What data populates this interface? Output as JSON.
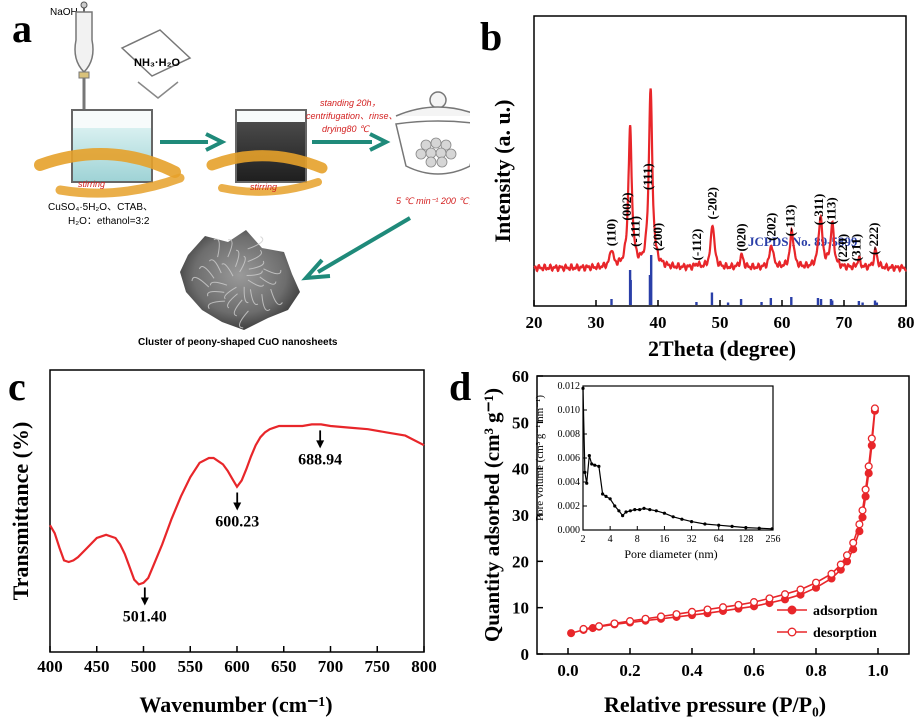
{
  "panels": {
    "a": {
      "letter": "a",
      "labels": {
        "naoh": "NaOH",
        "nh3": "NH₃·H₂O",
        "stirring1": "stirring",
        "reagents1": "CuSO₄·5H₂O、CTAB、",
        "reagents2": "H₂O：ethanol=3:2",
        "stirring2": "stirring",
        "step1": "standing 20h，",
        "step2": "centrifugation、rinse、",
        "step3": "drying80 ℃",
        "calc": "5 ℃ min⁻¹ 200 ℃，6h",
        "caption": "Cluster of peony-shaped CuO nanosheets"
      }
    },
    "b": {
      "letter": "b",
      "ref_label": "JCPDS No. 89-5899"
    },
    "c": {
      "letter": "c"
    },
    "d": {
      "letter": "d"
    }
  },
  "chart_data": [
    {
      "id": "xrd",
      "type": "line",
      "xlabel": "2Theta (degree)",
      "ylabel": "Intensity (a. u.)",
      "xlim": [
        20,
        80
      ],
      "xticks": [
        20,
        30,
        40,
        50,
        60,
        70,
        80
      ],
      "line_color": "#e8262a",
      "ref_color": "#2a3fa8",
      "peaks": [
        {
          "x": 32.5,
          "h": 0.1,
          "w": 0.45
        },
        {
          "x": 35.5,
          "h": 0.78,
          "w": 0.5
        },
        {
          "x": 38.8,
          "h": 1.0,
          "w": 0.5
        },
        {
          "x": 46.3,
          "h": 0.02,
          "w": 0.4
        },
        {
          "x": 48.8,
          "h": 0.25,
          "w": 0.5
        },
        {
          "x": 53.5,
          "h": 0.07,
          "w": 0.45
        },
        {
          "x": 58.3,
          "h": 0.13,
          "w": 0.5
        },
        {
          "x": 61.6,
          "h": 0.21,
          "w": 0.5
        },
        {
          "x": 66.2,
          "h": 0.28,
          "w": 0.55
        },
        {
          "x": 68.1,
          "h": 0.24,
          "w": 0.5
        },
        {
          "x": 72.4,
          "h": 0.05,
          "w": 0.4
        },
        {
          "x": 75.1,
          "h": 0.1,
          "w": 0.45
        }
      ],
      "annotations": [
        {
          "x": 32.5,
          "text": "(110)"
        },
        {
          "x": 35.0,
          "text": "(002)"
        },
        {
          "x": 36.4,
          "text": "(-111)"
        },
        {
          "x": 38.4,
          "text": "(111)"
        },
        {
          "x": 40.0,
          "text": "(200)"
        },
        {
          "x": 46.3,
          "text": "(-112)"
        },
        {
          "x": 48.8,
          "text": "(-202)"
        },
        {
          "x": 53.5,
          "text": "(020)"
        },
        {
          "x": 58.3,
          "text": "(202)"
        },
        {
          "x": 61.4,
          "text": "(-113)"
        },
        {
          "x": 66.0,
          "text": "(-311)"
        },
        {
          "x": 68.0,
          "text": "(113)"
        },
        {
          "x": 69.8,
          "text": "(220)"
        },
        {
          "x": 72.0,
          "text": "(311)"
        },
        {
          "x": 74.8,
          "text": "(-222)"
        }
      ],
      "reference_sticks": [
        {
          "x": 32.5,
          "h": 0.12
        },
        {
          "x": 35.5,
          "h": 0.7
        },
        {
          "x": 35.6,
          "h": 0.5
        },
        {
          "x": 38.7,
          "h": 0.6
        },
        {
          "x": 38.9,
          "h": 1.0
        },
        {
          "x": 46.2,
          "h": 0.06
        },
        {
          "x": 48.7,
          "h": 0.25
        },
        {
          "x": 51.3,
          "h": 0.05
        },
        {
          "x": 53.4,
          "h": 0.12
        },
        {
          "x": 56.7,
          "h": 0.06
        },
        {
          "x": 58.2,
          "h": 0.14
        },
        {
          "x": 61.5,
          "h": 0.16
        },
        {
          "x": 65.8,
          "h": 0.14
        },
        {
          "x": 66.3,
          "h": 0.12
        },
        {
          "x": 67.9,
          "h": 0.12
        },
        {
          "x": 68.1,
          "h": 0.09
        },
        {
          "x": 72.4,
          "h": 0.08
        },
        {
          "x": 73.0,
          "h": 0.05
        },
        {
          "x": 75.0,
          "h": 0.09
        },
        {
          "x": 75.3,
          "h": 0.05
        }
      ]
    },
    {
      "id": "ftir",
      "type": "line",
      "xlabel": "Wavenumber (cm⁻¹)",
      "ylabel": "Transmittance (%)",
      "xlim": [
        400,
        800
      ],
      "xticks": [
        400,
        450,
        500,
        550,
        600,
        650,
        700,
        750,
        800
      ],
      "line_color": "#e8262a",
      "x": [
        400,
        405,
        410,
        415,
        420,
        425,
        430,
        440,
        450,
        460,
        470,
        475,
        480,
        485,
        490,
        495,
        500,
        505,
        510,
        520,
        530,
        540,
        550,
        560,
        570,
        575,
        580,
        585,
        590,
        595,
        600,
        605,
        610,
        615,
        620,
        625,
        630,
        635,
        640,
        645,
        650,
        660,
        670,
        680,
        690,
        700,
        720,
        740,
        760,
        780,
        800
      ],
      "y": [
        0.38,
        0.33,
        0.24,
        0.16,
        0.15,
        0.16,
        0.18,
        0.24,
        0.3,
        0.32,
        0.3,
        0.26,
        0.2,
        0.12,
        0.04,
        0.01,
        0.02,
        0.05,
        0.12,
        0.26,
        0.42,
        0.56,
        0.68,
        0.77,
        0.8,
        0.8,
        0.78,
        0.76,
        0.72,
        0.67,
        0.62,
        0.66,
        0.73,
        0.81,
        0.88,
        0.93,
        0.96,
        0.98,
        0.99,
        1.0,
        1.0,
        1.0,
        1.0,
        1.01,
        1.01,
        1.0,
        0.99,
        0.98,
        0.96,
        0.94,
        0.88
      ],
      "annotations": [
        {
          "x": 501.4,
          "text": "501.40"
        },
        {
          "x": 600.23,
          "text": "600.23"
        },
        {
          "x": 688.94,
          "text": "688.94"
        }
      ]
    },
    {
      "id": "bet",
      "type": "line",
      "xlabel": "Relative pressure (P/P₀)",
      "ylabel": "Quantity adsorbed (cm³ g⁻¹)",
      "xlim": [
        -0.1,
        1.1
      ],
      "ylim": [
        0,
        60
      ],
      "xticks": [
        0.0,
        0.2,
        0.4,
        0.6,
        0.8,
        1.0
      ],
      "yticks": [
        0,
        10,
        20,
        30,
        40,
        50,
        60
      ],
      "series": [
        {
          "name": "adsorption",
          "marker": "filled",
          "x": [
            0.01,
            0.05,
            0.08,
            0.1,
            0.15,
            0.2,
            0.25,
            0.3,
            0.35,
            0.4,
            0.45,
            0.5,
            0.55,
            0.6,
            0.65,
            0.7,
            0.75,
            0.8,
            0.85,
            0.88,
            0.9,
            0.92,
            0.94,
            0.95,
            0.96,
            0.97,
            0.98,
            0.99
          ],
          "y": [
            4.5,
            5.2,
            5.6,
            5.9,
            6.4,
            6.8,
            7.2,
            7.6,
            8.0,
            8.4,
            8.8,
            9.3,
            9.8,
            10.3,
            11.0,
            11.8,
            12.8,
            14.3,
            16.3,
            18.2,
            20.0,
            22.6,
            26.5,
            29.5,
            34.0,
            39.0,
            45.0,
            52.5
          ]
        },
        {
          "name": "desorption",
          "marker": "open",
          "x": [
            0.99,
            0.98,
            0.97,
            0.96,
            0.95,
            0.94,
            0.92,
            0.9,
            0.88,
            0.85,
            0.8,
            0.75,
            0.7,
            0.65,
            0.6,
            0.55,
            0.5,
            0.45,
            0.4,
            0.35,
            0.3,
            0.25,
            0.2,
            0.15,
            0.1,
            0.05
          ],
          "y": [
            53.0,
            46.5,
            40.5,
            35.5,
            31.0,
            28.0,
            24.0,
            21.3,
            19.3,
            17.3,
            15.4,
            13.9,
            12.9,
            12.0,
            11.2,
            10.6,
            10.1,
            9.6,
            9.1,
            8.6,
            8.1,
            7.6,
            7.1,
            6.6,
            6.0,
            5.4
          ]
        }
      ],
      "legend": "bottom-right",
      "inset": {
        "xlabel": "Pore diameter (nm)",
        "ylabel": "Pore volume (cm³ g⁻¹ nm⁻¹)",
        "xscale": "log2",
        "xticks": [
          2,
          4,
          8,
          16,
          32,
          64,
          128,
          256
        ],
        "ylim": [
          0,
          0.012
        ],
        "yticks": [
          "0.000",
          "0.002",
          "0.004",
          "0.006",
          "0.008",
          "0.010",
          "0.012"
        ],
        "x": [
          2.0,
          2.1,
          2.2,
          2.35,
          2.5,
          2.7,
          3.0,
          3.3,
          3.6,
          4.0,
          4.5,
          5.0,
          5.5,
          6.0,
          6.7,
          7.5,
          8.5,
          9.5,
          11,
          13,
          16,
          20,
          25,
          32,
          45,
          64,
          90,
          128,
          180,
          250
        ],
        "y": [
          0.0118,
          0.0048,
          0.0039,
          0.0062,
          0.0055,
          0.0054,
          0.0053,
          0.003,
          0.0028,
          0.0026,
          0.002,
          0.0016,
          0.0012,
          0.0015,
          0.0016,
          0.0017,
          0.0017,
          0.0018,
          0.0017,
          0.0016,
          0.0014,
          0.0011,
          0.0009,
          0.0007,
          0.0005,
          0.0004,
          0.0003,
          0.0002,
          0.00015,
          0.0001
        ]
      }
    }
  ]
}
